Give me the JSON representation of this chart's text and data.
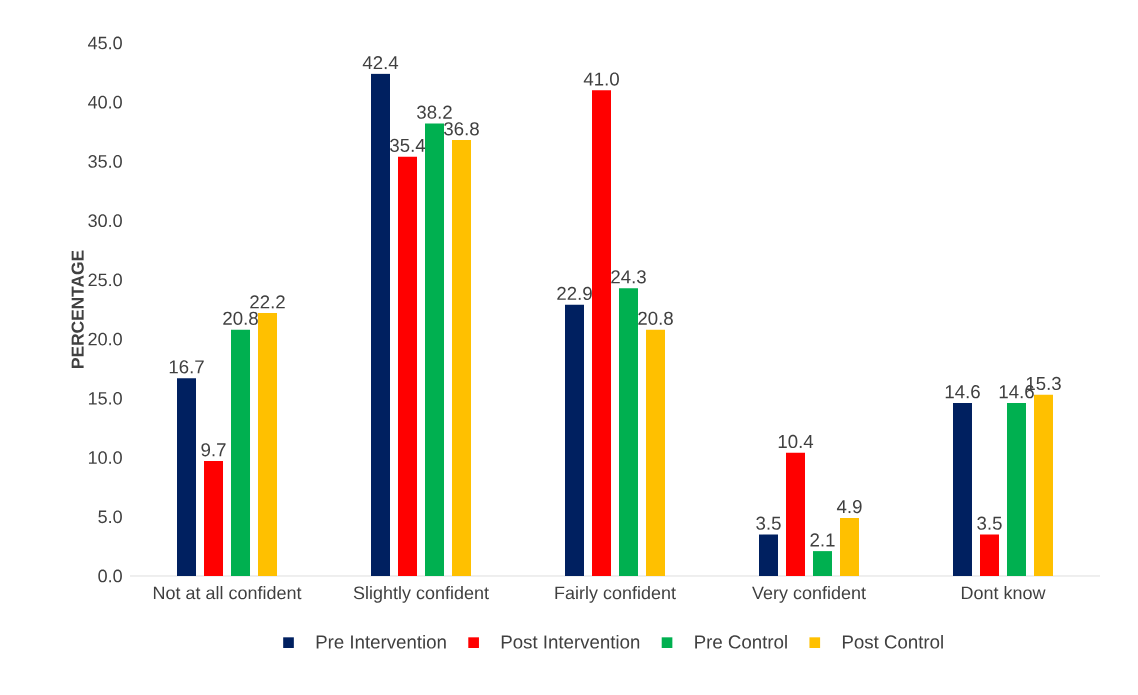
{
  "chart_data": {
    "type": "bar",
    "ylabel": "PERCENTAGE",
    "categories": [
      "Not at all confident",
      "Slightly confident",
      "Fairly confident",
      "Very confident",
      "Dont know"
    ],
    "series": [
      {
        "name": "Pre Intervention",
        "color": "#002060",
        "values": [
          16.7,
          42.4,
          22.9,
          3.5,
          14.6
        ],
        "value_labels": [
          "16.7",
          "42.4",
          "22.9",
          "3.5",
          "14.6"
        ]
      },
      {
        "name": "Post Intervention",
        "color": "#ff0000",
        "values": [
          9.7,
          35.4,
          41.0,
          10.4,
          3.5
        ],
        "value_labels": [
          "9.7",
          "35.4",
          "41.0",
          "10.4",
          "3.5"
        ]
      },
      {
        "name": "Pre Control",
        "color": "#00b050",
        "values": [
          20.8,
          38.2,
          24.3,
          2.1,
          14.6
        ],
        "value_labels": [
          "20.8",
          "38.2",
          "24.3",
          "2.1",
          "14.6"
        ]
      },
      {
        "name": "Post Control",
        "color": "#ffc000",
        "values": [
          22.2,
          36.8,
          20.8,
          4.9,
          15.3
        ],
        "value_labels": [
          "22.2",
          "36.8",
          "20.8",
          "4.9",
          "15.3"
        ]
      }
    ],
    "ylim": [
      0,
      45
    ],
    "yticks": [
      {
        "value": 0,
        "label": "0.0"
      },
      {
        "value": 5,
        "label": "5.0"
      },
      {
        "value": 10,
        "label": "10.0"
      },
      {
        "value": 15,
        "label": "15.0"
      },
      {
        "value": 20,
        "label": "20.0"
      },
      {
        "value": 25,
        "label": "25.0"
      },
      {
        "value": 30,
        "label": "30.0"
      },
      {
        "value": 35,
        "label": "35.0"
      },
      {
        "value": 40,
        "label": "40.0"
      },
      {
        "value": 45,
        "label": "45.0"
      }
    ],
    "legend": "bottom",
    "grid": false
  }
}
